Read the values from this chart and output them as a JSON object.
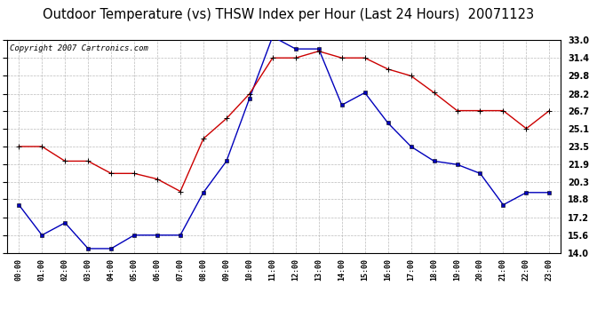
{
  "title": "Outdoor Temperature (vs) THSW Index per Hour (Last 24 Hours)  20071123",
  "copyright": "Copyright 2007 Cartronics.com",
  "hours": [
    "00:00",
    "01:00",
    "02:00",
    "03:00",
    "04:00",
    "05:00",
    "06:00",
    "07:00",
    "08:00",
    "09:00",
    "10:00",
    "11:00",
    "12:00",
    "13:00",
    "14:00",
    "15:00",
    "16:00",
    "17:00",
    "18:00",
    "19:00",
    "20:00",
    "21:00",
    "22:00",
    "23:00"
  ],
  "temp_blue": [
    18.3,
    15.6,
    16.7,
    14.4,
    14.4,
    15.6,
    15.6,
    15.6,
    19.4,
    22.2,
    27.8,
    33.3,
    32.2,
    32.2,
    27.2,
    28.3,
    25.6,
    23.5,
    22.2,
    21.9,
    21.1,
    18.3,
    19.4,
    19.4
  ],
  "thsw_red": [
    23.5,
    23.5,
    22.2,
    22.2,
    21.1,
    21.1,
    20.6,
    19.5,
    24.2,
    26.0,
    28.2,
    31.4,
    31.4,
    32.0,
    31.4,
    31.4,
    30.4,
    29.8,
    28.3,
    26.7,
    26.7,
    26.7,
    25.1,
    26.7
  ],
  "ymin": 14.0,
  "ymax": 33.0,
  "yticks": [
    14.0,
    15.6,
    17.2,
    18.8,
    20.3,
    21.9,
    23.5,
    25.1,
    26.7,
    28.2,
    29.8,
    31.4,
    33.0
  ],
  "blue_color": "#0000bb",
  "red_color": "#cc0000",
  "bg_color": "#ffffff",
  "grid_color": "#aaaaaa",
  "title_fontsize": 10.5,
  "copyright_fontsize": 6.5
}
